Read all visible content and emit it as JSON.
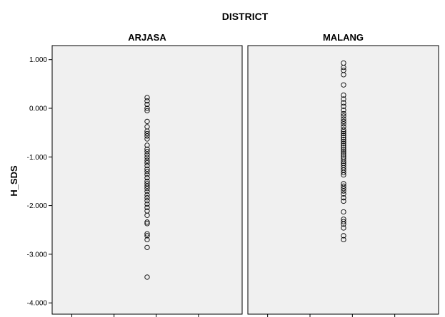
{
  "chart_data": {
    "type": "scatter",
    "title": "DISTRICT",
    "ylabel": "H_SDS",
    "ylim": [
      -4.1,
      1.3
    ],
    "yticks": [
      1,
      0,
      -1,
      -2,
      -3,
      -4
    ],
    "ytick_labels": [
      "1.000",
      "0.000",
      "-1.000",
      "-2.000",
      "-3.000",
      "-4.000"
    ],
    "grid": false,
    "panel_background": "#f0f0f0",
    "marker": "open-circle",
    "panels": [
      {
        "name": "ARJASA",
        "values": [
          0.22,
          0.15,
          0.08,
          0.0,
          -0.05,
          -0.27,
          -0.38,
          -0.47,
          -0.52,
          -0.57,
          -0.63,
          -0.76,
          -0.84,
          -0.89,
          -0.95,
          -1.01,
          -1.07,
          -1.12,
          -1.18,
          -1.25,
          -1.3,
          -1.36,
          -1.43,
          -1.5,
          -1.55,
          -1.6,
          -1.65,
          -1.71,
          -1.78,
          -1.84,
          -1.9,
          -1.97,
          -2.04,
          -2.11,
          -2.2,
          -2.34,
          -2.37,
          -2.58,
          -2.62,
          -2.7,
          -2.86,
          -3.47
        ]
      },
      {
        "name": "MALANG",
        "values": [
          0.93,
          0.84,
          0.78,
          0.69,
          0.48,
          0.27,
          0.19,
          0.11,
          0.04,
          -0.04,
          -0.11,
          -0.16,
          -0.22,
          -0.27,
          -0.32,
          -0.38,
          -0.44,
          -0.48,
          -0.52,
          -0.56,
          -0.6,
          -0.64,
          -0.68,
          -0.72,
          -0.76,
          -0.8,
          -0.84,
          -0.88,
          -0.92,
          -0.96,
          -1.0,
          -1.04,
          -1.09,
          -1.13,
          -1.17,
          -1.22,
          -1.27,
          -1.32,
          -1.37,
          -1.55,
          -1.6,
          -1.65,
          -1.7,
          -1.76,
          -1.84,
          -1.91,
          -2.13,
          -2.28,
          -2.33,
          -2.38,
          -2.46,
          -2.62,
          -2.7
        ]
      }
    ]
  }
}
